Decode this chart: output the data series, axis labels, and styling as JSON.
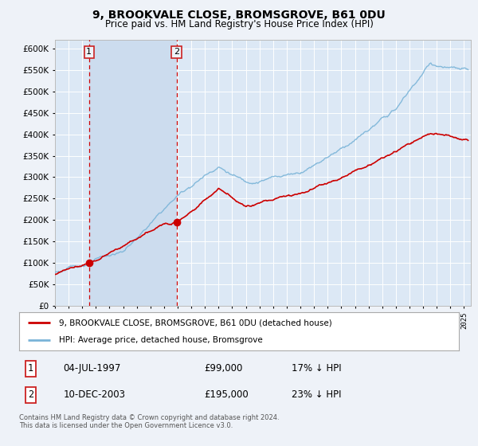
{
  "title": "9, BROOKVALE CLOSE, BROMSGROVE, B61 0DU",
  "subtitle": "Price paid vs. HM Land Registry's House Price Index (HPI)",
  "legend_line1": "9, BROOKVALE CLOSE, BROMSGROVE, B61 0DU (detached house)",
  "legend_line2": "HPI: Average price, detached house, Bromsgrove",
  "sale1_date": "04-JUL-1997",
  "sale1_price": "£99,000",
  "sale1_hpi": "17% ↓ HPI",
  "sale1_year": 1997.5,
  "sale1_value": 99000,
  "sale2_date": "10-DEC-2003",
  "sale2_price": "£195,000",
  "sale2_hpi": "23% ↓ HPI",
  "sale2_year": 2003.92,
  "sale2_value": 195000,
  "hpi_color": "#7ab4d8",
  "price_color": "#cc0000",
  "marker_color": "#cc0000",
  "dashed_color": "#cc0000",
  "background_color": "#eef2f8",
  "plot_bg": "#dce8f5",
  "shade_bg": "#ccdcee",
  "ylim": [
    0,
    620000
  ],
  "yticks": [
    0,
    50000,
    100000,
    150000,
    200000,
    250000,
    300000,
    350000,
    400000,
    450000,
    500000,
    550000,
    600000
  ],
  "footer": "Contains HM Land Registry data © Crown copyright and database right 2024.\nThis data is licensed under the Open Government Licence v3.0.",
  "annotation_box_color": "#cc2222",
  "xlim_start": 1995,
  "xlim_end": 2025.5
}
